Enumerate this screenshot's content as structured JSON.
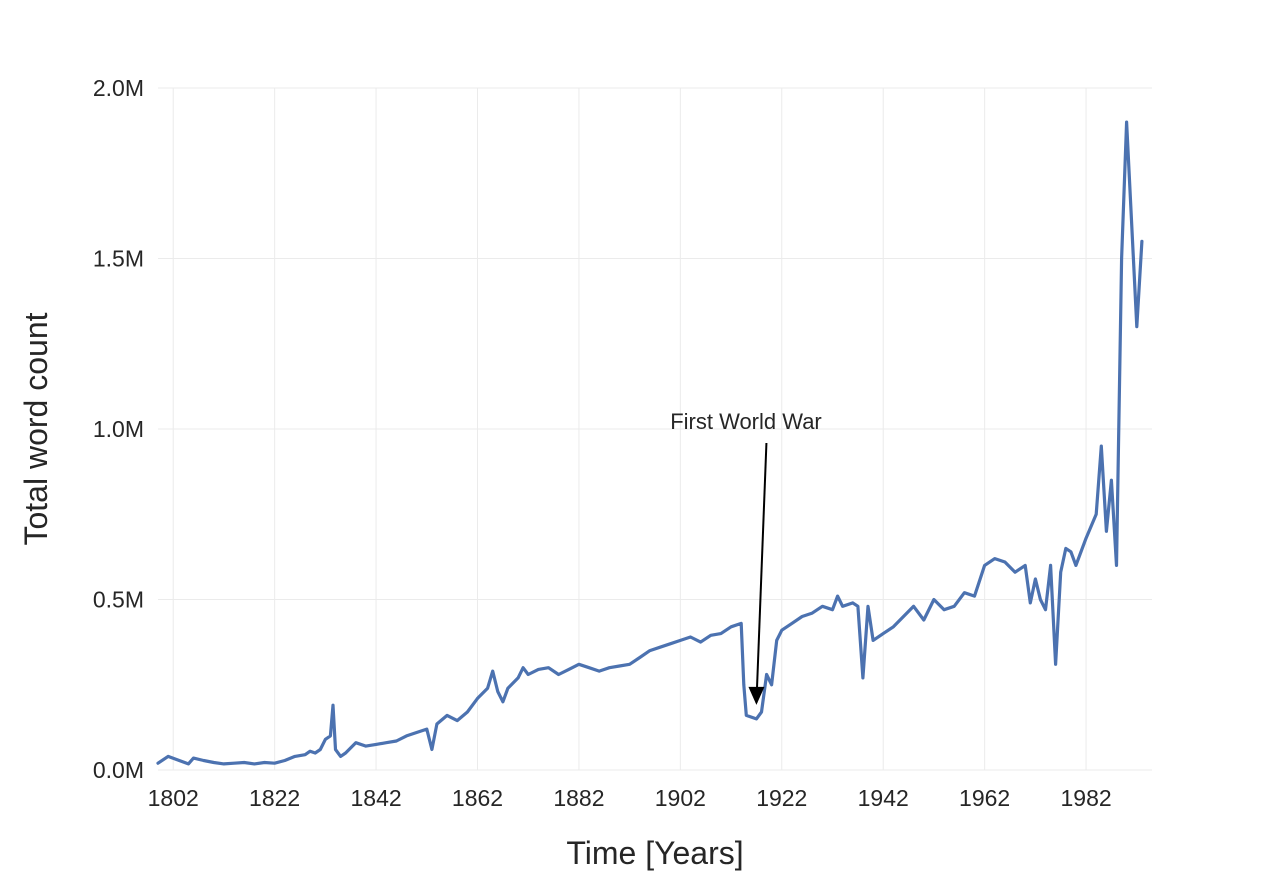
{
  "chart_data": {
    "type": "line",
    "xlabel": "Time [Years]",
    "ylabel": "Total word count",
    "xlim": [
      1799,
      1995
    ],
    "ylim": [
      0,
      2000000
    ],
    "grid": true,
    "x_ticks": [
      1802,
      1822,
      1842,
      1862,
      1882,
      1902,
      1922,
      1942,
      1962,
      1982
    ],
    "x_tick_labels": [
      "1802",
      "1822",
      "1842",
      "1862",
      "1882",
      "1902",
      "1922",
      "1942",
      "1962",
      "1982"
    ],
    "y_ticks": [
      0,
      500000,
      1000000,
      1500000,
      2000000
    ],
    "y_tick_labels": [
      "0.0M",
      "0.5M",
      "1.0M",
      "1.5M",
      "2.0M"
    ],
    "series": [
      {
        "color": "#4c72b0",
        "x": [
          1799,
          1801,
          1805,
          1806,
          1808,
          1810,
          1812,
          1814,
          1816,
          1818,
          1820,
          1822,
          1824,
          1826,
          1828,
          1829,
          1830,
          1831,
          1832,
          1833,
          1833.5,
          1834,
          1835,
          1836,
          1838,
          1840,
          1842,
          1844,
          1846,
          1848,
          1850,
          1852,
          1853,
          1854,
          1856,
          1858,
          1860,
          1862,
          1864,
          1865,
          1866,
          1867,
          1868,
          1870,
          1871,
          1872,
          1874,
          1876,
          1878,
          1880,
          1882,
          1884,
          1886,
          1888,
          1890,
          1892,
          1894,
          1896,
          1898,
          1900,
          1902,
          1904,
          1906,
          1908,
          1910,
          1912,
          1914,
          1914.5,
          1915,
          1917,
          1918,
          1919,
          1920,
          1921,
          1922,
          1924,
          1926,
          1928,
          1930,
          1932,
          1933,
          1934,
          1936,
          1937,
          1938,
          1939,
          1940,
          1942,
          1944,
          1946,
          1948,
          1950,
          1952,
          1954,
          1956,
          1958,
          1960,
          1962,
          1964,
          1966,
          1968,
          1970,
          1971,
          1972,
          1973,
          1974,
          1975,
          1976,
          1977,
          1978,
          1979,
          1980,
          1982,
          1984,
          1985,
          1986,
          1987,
          1988,
          1989,
          1990,
          1991,
          1992,
          1993
        ],
        "values": [
          20000,
          40000,
          18000,
          35000,
          28000,
          22000,
          18000,
          20000,
          22000,
          18000,
          22000,
          20000,
          28000,
          40000,
          45000,
          55000,
          50000,
          60000,
          90000,
          100000,
          190000,
          60000,
          40000,
          50000,
          80000,
          70000,
          75000,
          80000,
          85000,
          100000,
          110000,
          120000,
          60000,
          135000,
          160000,
          145000,
          170000,
          210000,
          240000,
          290000,
          230000,
          200000,
          240000,
          270000,
          300000,
          280000,
          295000,
          300000,
          280000,
          295000,
          310000,
          300000,
          290000,
          300000,
          305000,
          310000,
          330000,
          350000,
          360000,
          370000,
          380000,
          390000,
          375000,
          395000,
          400000,
          420000,
          430000,
          250000,
          160000,
          150000,
          170000,
          280000,
          250000,
          380000,
          410000,
          430000,
          450000,
          460000,
          480000,
          470000,
          510000,
          480000,
          490000,
          480000,
          270000,
          480000,
          380000,
          400000,
          420000,
          450000,
          480000,
          440000,
          500000,
          470000,
          480000,
          520000,
          510000,
          600000,
          620000,
          610000,
          580000,
          600000,
          490000,
          560000,
          500000,
          470000,
          600000,
          310000,
          580000,
          650000,
          640000,
          600000,
          680000,
          750000,
          950000,
          700000,
          850000,
          600000,
          1500000,
          1900000,
          1600000,
          1300000,
          1550000
        ]
      }
    ],
    "annotation": {
      "text": "First World War",
      "x": 1917,
      "y": 150000,
      "text_x": 1900,
      "text_y": 1000000
    }
  }
}
